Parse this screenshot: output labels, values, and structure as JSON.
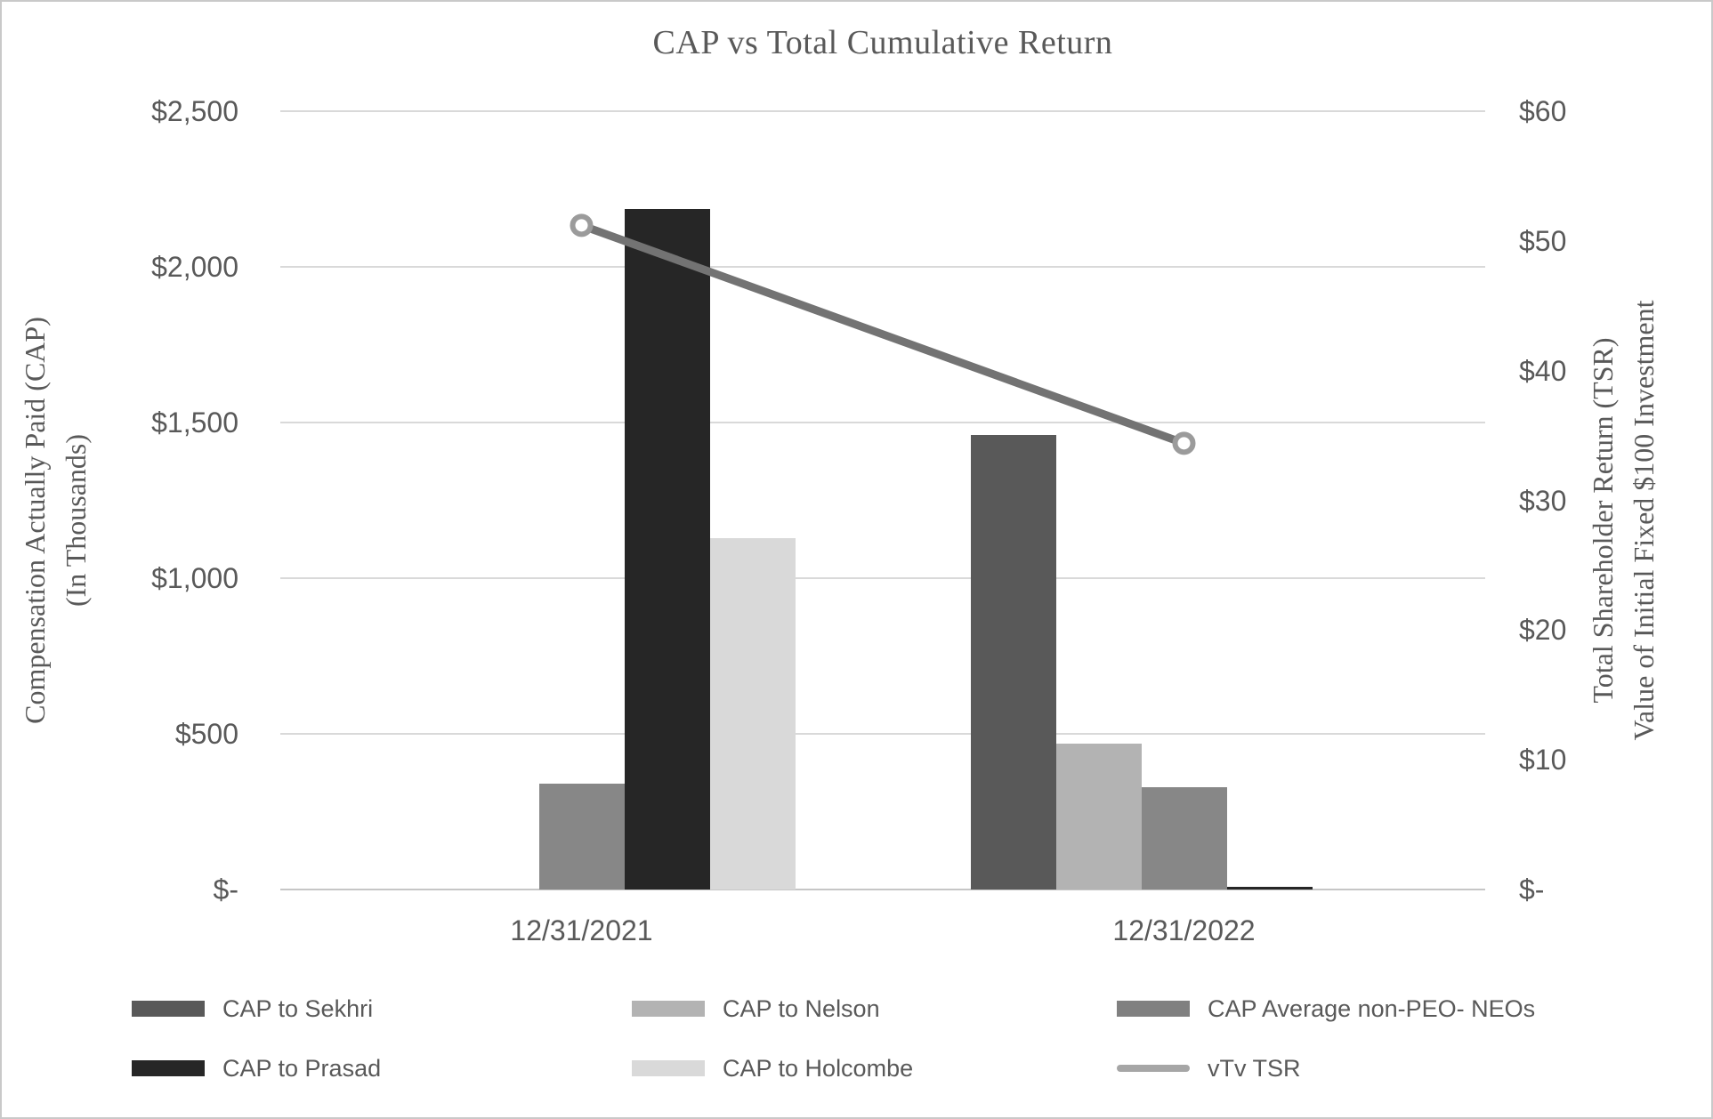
{
  "chart_data": {
    "type": "combo-bar-line",
    "title": "CAP vs Total Cumulative Return",
    "categories": [
      "12/31/2021",
      "12/31/2022"
    ],
    "bar_series": [
      {
        "name": "CAP to Sekhri",
        "color": "#595959",
        "values": [
          null,
          1460
        ]
      },
      {
        "name": "CAP to Nelson",
        "color": "#b3b3b3",
        "values": [
          null,
          470
        ]
      },
      {
        "name": "CAP Average non-PEO- NEOs",
        "color": "#878787",
        "values": [
          340,
          330
        ]
      },
      {
        "name": "CAP to Prasad",
        "color": "#262626",
        "values": [
          2185,
          10
        ]
      },
      {
        "name": "CAP to Holcombe",
        "color": "#d9d9d9",
        "values": [
          1130,
          null
        ]
      }
    ],
    "line_series": [
      {
        "name": "vTv TSR",
        "color": "#737373",
        "marker_ring": "#9b9b9b",
        "axis": "right",
        "values": [
          51.2,
          34.4
        ]
      }
    ],
    "left_axis": {
      "title_lines": [
        "Compensation Actually Paid (CAP)",
        "(In Thousands)"
      ],
      "range": [
        0,
        2500
      ],
      "ticks": [
        {
          "label": "$2,500",
          "value": 2500
        },
        {
          "label": "$2,000",
          "value": 2000
        },
        {
          "label": "$1,500",
          "value": 1500
        },
        {
          "label": "$1,000",
          "value": 1000
        },
        {
          "label": "$500",
          "value": 500
        },
        {
          "label": "$-",
          "value": 0
        }
      ]
    },
    "right_axis": {
      "title_lines": [
        "Total Shareholder Return (TSR)",
        "Value of Initial Fixed $100 Investment"
      ],
      "range": [
        0,
        60
      ],
      "ticks": [
        {
          "label": "$60",
          "value": 60
        },
        {
          "label": "$50",
          "value": 50
        },
        {
          "label": "$40",
          "value": 40
        },
        {
          "label": "$30",
          "value": 30
        },
        {
          "label": "$20",
          "value": 20
        },
        {
          "label": "$10",
          "value": 10
        },
        {
          "label": "$-",
          "value": 0
        }
      ]
    },
    "grid": true,
    "legend_position": "bottom"
  },
  "legend": {
    "entries": [
      {
        "label": "CAP to Sekhri",
        "color": "#595959",
        "swatch": "box",
        "row": 0,
        "col": 0
      },
      {
        "label": "CAP to Nelson",
        "color": "#b3b3b3",
        "swatch": "box",
        "row": 0,
        "col": 1
      },
      {
        "label": "CAP Average non-PEO- NEOs",
        "color": "#808080",
        "swatch": "box",
        "row": 0,
        "col": 2
      },
      {
        "label": "CAP to Prasad",
        "color": "#262626",
        "swatch": "box",
        "row": 1,
        "col": 0
      },
      {
        "label": "CAP to Holcombe",
        "color": "#d9d9d9",
        "swatch": "box",
        "row": 1,
        "col": 1
      },
      {
        "label": "vTv TSR",
        "color": "#a6a6a6",
        "swatch": "line",
        "row": 1,
        "col": 2
      }
    ]
  }
}
